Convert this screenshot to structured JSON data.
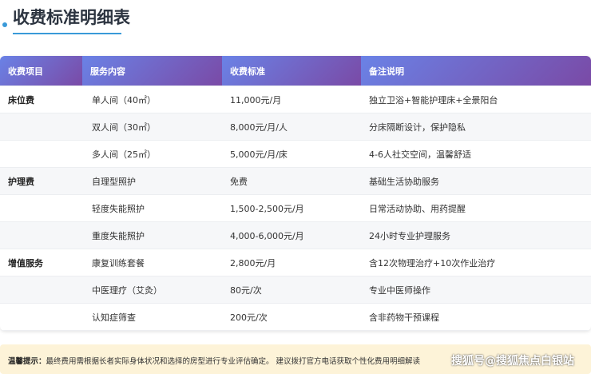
{
  "title": "收费标准明细表",
  "headers": [
    "收费项目",
    "服务内容",
    "收费标准",
    "备注说明"
  ],
  "rows": [
    {
      "cat": "床位费",
      "service": "单人间（40㎡）",
      "price": "11,000元/月",
      "note": "独立卫浴+智能护理床+全景阳台"
    },
    {
      "cat": "",
      "service": "双人间（30㎡）",
      "price": "8,000元/月/人",
      "note": "分床隔断设计，保护隐私"
    },
    {
      "cat": "",
      "service": "多人间（25㎡）",
      "price": "5,000元/月/床",
      "note": "4-6人社交空间，温馨舒适"
    },
    {
      "cat": "护理费",
      "service": "自理型照护",
      "price": "免费",
      "note": "基础生活协助服务"
    },
    {
      "cat": "",
      "service": "轻度失能照护",
      "price": "1,500-2,500元/月",
      "note": "日常活动协助、用药提醒"
    },
    {
      "cat": "",
      "service": "重度失能照护",
      "price": "4,000-6,000元/月",
      "note": "24小时专业护理服务"
    },
    {
      "cat": "增值服务",
      "service": "康复训练套餐",
      "price": "2,800元/月",
      "note": "含12次物理治疗+10次作业治疗"
    },
    {
      "cat": "",
      "service": "中医理疗（艾灸）",
      "price": "80元/次",
      "note": "专业中医师操作"
    },
    {
      "cat": "",
      "service": "认知症筛查",
      "price": "200元/次",
      "note": "含非药物干预课程"
    }
  ],
  "tip": {
    "label": "温馨提示：",
    "text": "最终费用需根据长者实际身体状况和选择的房型进行专业评估确定。 建议拨打官方电话获取个性化费用明细解读"
  },
  "watermark": "搜狐号@搜狐焦点白银站"
}
